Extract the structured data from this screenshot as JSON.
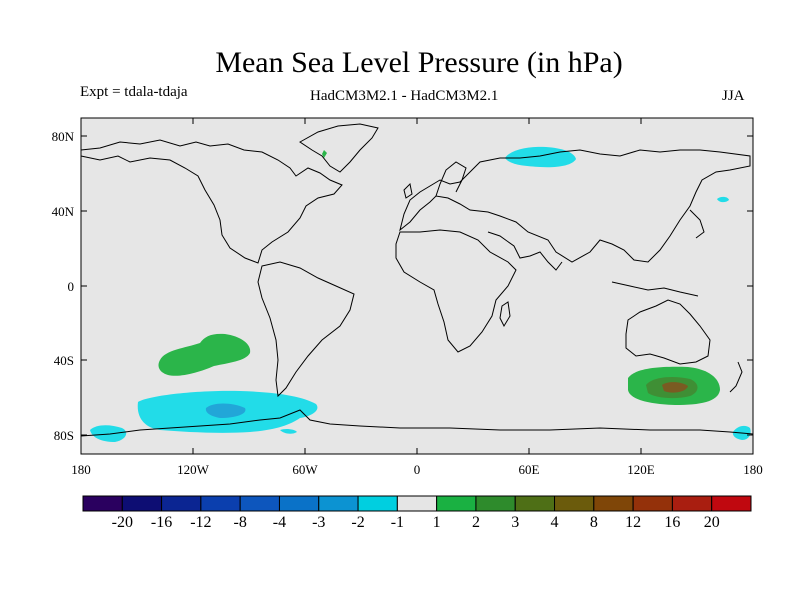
{
  "header": {
    "title": "Mean Sea Level Pressure (in hPa)",
    "experiment": "Expt = tdala-tdaja",
    "models": "HadCM3M2.1 - HadCM3M2.1",
    "season": "JJA"
  },
  "map": {
    "lat_tick_labels": [
      "80N",
      "40N",
      "0",
      "40S",
      "80S"
    ],
    "lon_tick_labels": [
      "180",
      "120W",
      "60W",
      "0",
      "60E",
      "120E",
      "180"
    ]
  },
  "colorbar": {
    "colors": [
      "#2a005f",
      "#0d0d73",
      "#0b2592",
      "#0b3fae",
      "#0d56bd",
      "#0a72c8",
      "#0c93d2",
      "#00cfe0",
      "#e5e5e5",
      "#1ab142",
      "#2e8b2c",
      "#4e6f16",
      "#6b5b0c",
      "#7f4608",
      "#94310a",
      "#a91e10",
      "#c0080f"
    ],
    "labels": [
      "-20",
      "-16",
      "-12",
      "-8",
      "-4",
      "-3",
      "-2",
      "-1",
      "1",
      "2",
      "3",
      "4",
      "8",
      "12",
      "16",
      "20"
    ]
  },
  "colors": {
    "background": "#e6e6e6",
    "positive_light": "#2bb54a",
    "positive_dark": "#3f8f35",
    "positive_core": "#7a5b22",
    "negative_light": "#22dce8",
    "negative_dark": "#22a6d8"
  }
}
